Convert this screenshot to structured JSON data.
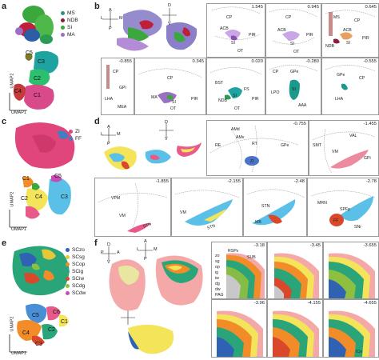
{
  "panels": {
    "a": {
      "letter": "a",
      "umap_x": "UMAP1",
      "umap_y": "UMAP2",
      "legend": [
        {
          "label": "MS",
          "color": "#2c8f8c"
        },
        {
          "label": "NDB",
          "color": "#8a1d3a"
        },
        {
          "label": "SI",
          "color": "#3aa83c"
        },
        {
          "label": "MA",
          "color": "#9b6fc2"
        }
      ],
      "clusters": [
        "C1",
        "C2",
        "C3",
        "C4",
        "C5"
      ]
    },
    "b": {
      "letter": "b",
      "compass": [
        "A",
        "L",
        "M",
        "P",
        "D",
        "V"
      ],
      "sections": [
        {
          "coord": "1.545",
          "labels": [
            "CP",
            "ACB",
            "SI",
            "PIR",
            "OT"
          ]
        },
        {
          "coord": "0.945",
          "labels": [
            "CP",
            "ACB",
            "SI",
            "PIR",
            "OT"
          ]
        },
        {
          "coord": "0.645",
          "labels": [
            "MS",
            "CP",
            "NDB",
            "ACB",
            "SI",
            "PIR"
          ]
        },
        {
          "coord": "0.345",
          "labels": [
            "CP",
            "MA",
            "SI",
            "PIR",
            "OT"
          ]
        },
        {
          "coord": "0.020",
          "labels": [
            "BST",
            "SI",
            "FS",
            "NDB",
            "OT",
            "PIR"
          ]
        },
        {
          "coord": "-0.280",
          "labels": [
            "CP",
            "GPe",
            "SI",
            "LPO",
            "AAA"
          ]
        },
        {
          "coord": "-0.555",
          "labels": [
            "GPe",
            "CP",
            "LHA"
          ]
        },
        {
          "coord": "-0.855",
          "labels": [
            "CP",
            "GPi",
            "LHA",
            "MEA"
          ]
        }
      ]
    },
    "c": {
      "letter": "c",
      "umap_x": "UMAP1",
      "umap_y": "UMAP2",
      "legend": [
        {
          "label": "ZI",
          "color": "#e0457b"
        },
        {
          "label": "FF",
          "color": "#3f7fc2"
        }
      ],
      "clusters": [
        "C1",
        "C2",
        "C3",
        "C4",
        "C5"
      ]
    },
    "d": {
      "letter": "d",
      "compass": [
        "A",
        "L",
        "M",
        "P",
        "D",
        "V"
      ],
      "sections": [
        {
          "coord": "-0.755",
          "labels": [
            "AMd",
            "AMv",
            "RE",
            "RT",
            "GPe",
            "ZI"
          ]
        },
        {
          "coord": "-1.455",
          "labels": [
            "VAL",
            "SMT",
            "VM",
            "GPi"
          ]
        },
        {
          "coord": "-1.855",
          "labels": [
            "VPM",
            "VM",
            "STN"
          ]
        },
        {
          "coord": "-2.155",
          "labels": [
            "VM",
            "STN"
          ]
        },
        {
          "coord": "-2.48",
          "labels": [
            "STN",
            "MB"
          ]
        },
        {
          "coord": "-2.78",
          "labels": [
            "MRN",
            "SPFp",
            "FF",
            "SNr"
          ]
        }
      ]
    },
    "e": {
      "letter": "e",
      "umap_x": "UMAP1",
      "umap_y": "UMAP2",
      "legend": [
        {
          "label": "SCzo",
          "color": "#2f62b3"
        },
        {
          "label": "SCsg",
          "color": "#e4c83a"
        },
        {
          "label": "SCop",
          "color": "#f28c28"
        },
        {
          "label": "SCig",
          "color": "#2aa57a"
        },
        {
          "label": "SCiw",
          "color": "#d9482b"
        },
        {
          "label": "SCdg",
          "color": "#8fbf3f"
        },
        {
          "label": "SCdw",
          "color": "#c84ab5"
        }
      ],
      "clusters": [
        "C1",
        "C2",
        "C3",
        "C4",
        "C5",
        "C6"
      ]
    },
    "f": {
      "letter": "f",
      "compass": [
        "A",
        "L",
        "M",
        "P",
        "D",
        "V"
      ],
      "sections": [
        {
          "coord": "-3.18",
          "labels": [
            "RSPv",
            "SUB",
            "zo",
            "sg",
            "op",
            "ig",
            "iw",
            "dg",
            "dw",
            "PAG",
            "ICe"
          ]
        },
        {
          "coord": "-3.45",
          "labels": []
        },
        {
          "coord": "-3.655",
          "labels": []
        },
        {
          "coord": "-3.96",
          "labels": []
        },
        {
          "coord": "-4.155",
          "labels": []
        },
        {
          "coord": "-4.655",
          "labels": [
            "ICe"
          ]
        }
      ]
    }
  }
}
